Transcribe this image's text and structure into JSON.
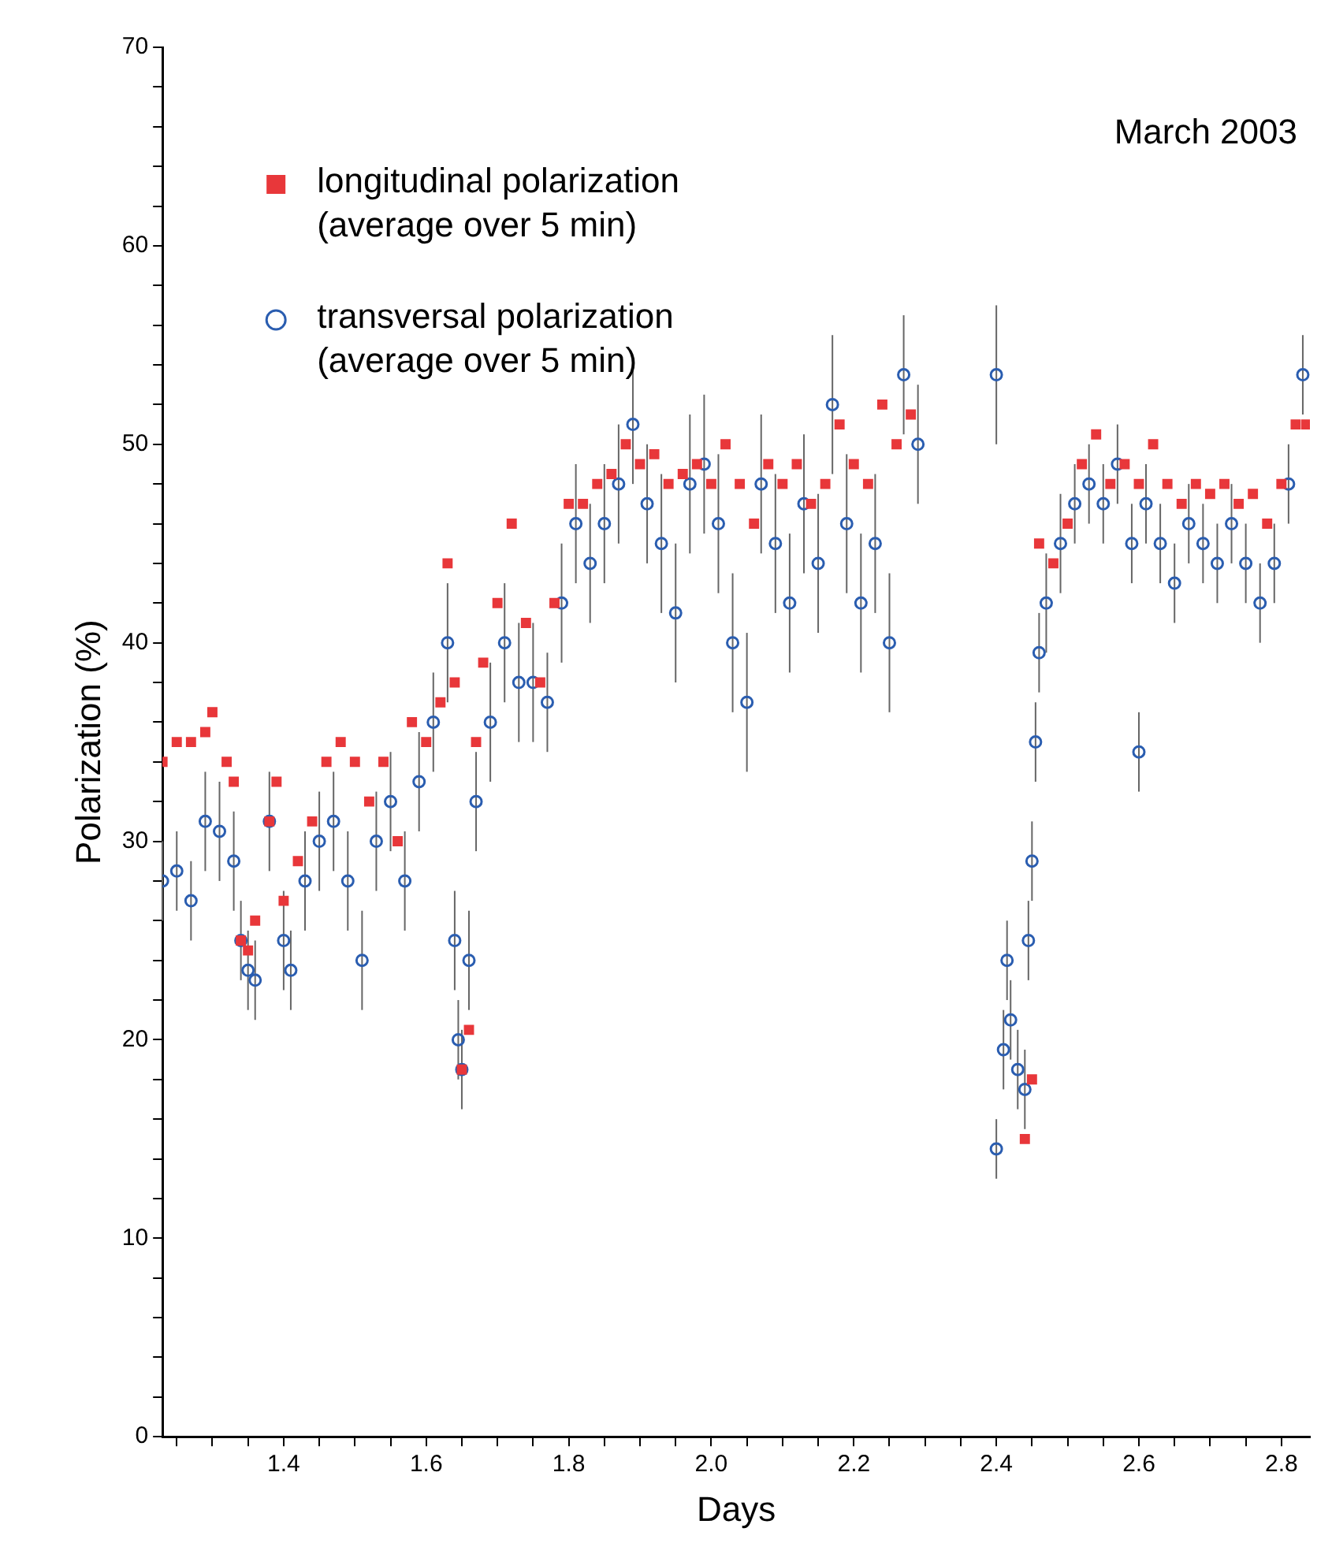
{
  "chart_data": {
    "type": "scatter",
    "title": "March 2003",
    "xlabel": "Days",
    "ylabel": "Polarization (%)",
    "xlim": [
      1.23,
      2.84
    ],
    "ylim": [
      0,
      70
    ],
    "xticks": [
      {
        "value": 1.25,
        "label": null
      },
      {
        "value": 1.3,
        "label": null
      },
      {
        "value": 1.35,
        "label": null
      },
      1.4,
      {
        "value": 1.45,
        "label": null
      },
      {
        "value": 1.5,
        "label": null
      },
      {
        "value": 1.55,
        "label": null
      },
      1.6,
      {
        "value": 1.65,
        "label": null
      },
      {
        "value": 1.7,
        "label": null
      },
      {
        "value": 1.75,
        "label": null
      },
      1.8,
      {
        "value": 1.85,
        "label": null
      },
      {
        "value": 1.9,
        "label": null
      },
      {
        "value": 1.95,
        "label": null
      },
      {
        "value": 2.0,
        "label": "2.0"
      },
      {
        "value": 2.05,
        "label": null
      },
      {
        "value": 2.1,
        "label": null
      },
      {
        "value": 2.15,
        "label": null
      },
      2.2,
      {
        "value": 2.25,
        "label": null
      },
      {
        "value": 2.3,
        "label": null
      },
      {
        "value": 2.35,
        "label": null
      },
      2.4,
      {
        "value": 2.45,
        "label": null
      },
      {
        "value": 2.5,
        "label": null
      },
      {
        "value": 2.55,
        "label": null
      },
      2.6,
      {
        "value": 2.65,
        "label": null
      },
      {
        "value": 2.7,
        "label": null
      },
      {
        "value": 2.75,
        "label": null
      },
      2.8
    ],
    "yticks": [
      0,
      {
        "value": 2,
        "label": null
      },
      {
        "value": 4,
        "label": null
      },
      {
        "value": 6,
        "label": null
      },
      {
        "value": 8,
        "label": null
      },
      10,
      {
        "value": 12,
        "label": null
      },
      {
        "value": 14,
        "label": null
      },
      {
        "value": 16,
        "label": null
      },
      {
        "value": 18,
        "label": null
      },
      20,
      {
        "value": 22,
        "label": null
      },
      {
        "value": 24,
        "label": null
      },
      {
        "value": 26,
        "label": null
      },
      {
        "value": 28,
        "label": null
      },
      30,
      {
        "value": 32,
        "label": null
      },
      {
        "value": 34,
        "label": null
      },
      {
        "value": 36,
        "label": null
      },
      {
        "value": 38,
        "label": null
      },
      40,
      {
        "value": 42,
        "label": null
      },
      {
        "value": 44,
        "label": null
      },
      {
        "value": 46,
        "label": null
      },
      {
        "value": 48,
        "label": null
      },
      50,
      {
        "value": 52,
        "label": null
      },
      {
        "value": 54,
        "label": null
      },
      {
        "value": 56,
        "label": null
      },
      {
        "value": 58,
        "label": null
      },
      60,
      {
        "value": 62,
        "label": null
      },
      {
        "value": 64,
        "label": null
      },
      {
        "value": 66,
        "label": null
      },
      {
        "value": 68,
        "label": null
      },
      70
    ],
    "grid": false,
    "legend": "top left",
    "series": [
      {
        "name": "longitudinal polarization\n(average over 5 min)",
        "color": "#e8373a",
        "marker": "square",
        "x": [
          1.23,
          1.25,
          1.27,
          1.29,
          1.3,
          1.32,
          1.33,
          1.34,
          1.35,
          1.36,
          1.38,
          1.39,
          1.4,
          1.42,
          1.44,
          1.46,
          1.48,
          1.5,
          1.52,
          1.54,
          1.56,
          1.58,
          1.6,
          1.62,
          1.63,
          1.64,
          1.65,
          1.66,
          1.67,
          1.68,
          1.7,
          1.72,
          1.74,
          1.76,
          1.78,
          1.8,
          1.82,
          1.84,
          1.86,
          1.88,
          1.9,
          1.92,
          1.94,
          1.96,
          1.98,
          2.0,
          2.02,
          2.04,
          2.06,
          2.08,
          2.1,
          2.12,
          2.14,
          2.16,
          2.18,
          2.2,
          2.22,
          2.24,
          2.26,
          2.28,
          2.44,
          2.45,
          2.46,
          2.48,
          2.5,
          2.52,
          2.54,
          2.56,
          2.58,
          2.6,
          2.62,
          2.64,
          2.66,
          2.68,
          2.7,
          2.72,
          2.74,
          2.76,
          2.78,
          2.8,
          2.82,
          2.835
        ],
        "values": [
          34,
          35,
          35,
          35.5,
          36.5,
          34,
          33,
          25,
          24.5,
          26,
          31,
          33,
          27,
          29,
          31,
          34,
          35,
          34,
          32,
          34,
          30,
          36,
          35,
          37,
          44,
          38,
          18.5,
          20.5,
          35,
          39,
          42,
          46,
          41,
          38,
          42,
          47,
          47,
          48,
          48.5,
          50,
          49,
          49.5,
          48,
          48.5,
          49,
          48,
          50,
          48,
          46,
          49,
          48,
          49,
          47,
          48,
          51,
          49,
          48,
          52,
          50,
          51.5,
          15,
          18,
          45,
          44,
          46,
          49,
          50.5,
          48,
          49,
          48,
          50,
          48,
          47,
          48,
          47.5,
          48,
          47,
          47.5,
          46,
          48,
          51,
          51
        ]
      },
      {
        "name": "transversal polarization\n(average over 5 min)",
        "color": "#2a5db0",
        "marker": "circle",
        "x": [
          1.23,
          1.25,
          1.27,
          1.29,
          1.31,
          1.33,
          1.34,
          1.35,
          1.36,
          1.38,
          1.4,
          1.41,
          1.43,
          1.45,
          1.47,
          1.49,
          1.51,
          1.53,
          1.55,
          1.57,
          1.59,
          1.61,
          1.63,
          1.64,
          1.645,
          1.65,
          1.66,
          1.67,
          1.69,
          1.71,
          1.73,
          1.75,
          1.77,
          1.79,
          1.81,
          1.83,
          1.85,
          1.87,
          1.89,
          1.91,
          1.93,
          1.95,
          1.97,
          1.99,
          2.01,
          2.03,
          2.05,
          2.07,
          2.09,
          2.11,
          2.13,
          2.15,
          2.17,
          2.19,
          2.21,
          2.23,
          2.25,
          2.27,
          2.29,
          2.4,
          2.4,
          2.41,
          2.415,
          2.42,
          2.43,
          2.44,
          2.445,
          2.45,
          2.455,
          2.46,
          2.47,
          2.49,
          2.51,
          2.53,
          2.55,
          2.57,
          2.59,
          2.6,
          2.61,
          2.63,
          2.65,
          2.67,
          2.69,
          2.71,
          2.73,
          2.75,
          2.77,
          2.79,
          2.81,
          2.83
        ],
        "values": [
          28,
          28.5,
          27,
          31,
          30.5,
          29,
          25,
          23.5,
          23,
          31,
          25,
          23.5,
          28,
          30,
          31,
          28,
          24,
          30,
          32,
          28,
          33,
          36,
          40,
          25,
          20,
          18.5,
          24,
          32,
          36,
          40,
          38,
          38,
          37,
          42,
          46,
          44,
          46,
          48,
          51,
          47,
          45,
          41.5,
          48,
          49,
          46,
          40,
          37,
          48,
          45,
          42,
          47,
          44,
          52,
          46,
          42,
          45,
          40,
          53.5,
          50,
          53.5,
          14.5,
          19.5,
          24,
          21,
          18.5,
          17.5,
          25,
          29,
          35,
          39.5,
          42,
          45,
          47,
          48,
          47,
          49,
          45,
          34.5,
          47,
          45,
          43,
          46,
          45,
          44,
          46,
          44,
          42,
          44,
          48,
          53.5
        ],
        "errors": [
          2,
          2,
          2,
          2.5,
          2.5,
          2.5,
          2,
          2,
          2,
          2.5,
          2.5,
          2,
          2.5,
          2.5,
          2.5,
          2.5,
          2.5,
          2.5,
          2.5,
          2.5,
          2.5,
          2.5,
          3,
          2.5,
          2,
          2,
          2.5,
          2.5,
          3,
          3,
          3,
          3,
          2.5,
          3,
          3,
          3,
          3,
          3,
          3,
          3,
          3.5,
          3.5,
          3.5,
          3.5,
          3.5,
          3.5,
          3.5,
          3.5,
          3.5,
          3.5,
          3.5,
          3.5,
          3.5,
          3.5,
          3.5,
          3.5,
          3.5,
          3,
          3,
          3.5,
          1.5,
          2,
          2,
          2,
          2,
          2,
          2,
          2,
          2,
          2,
          2.5,
          2.5,
          2,
          2,
          2,
          2,
          2,
          2,
          2,
          2,
          2,
          2,
          2,
          2,
          2,
          2,
          2,
          2,
          2,
          2
        ]
      }
    ]
  }
}
